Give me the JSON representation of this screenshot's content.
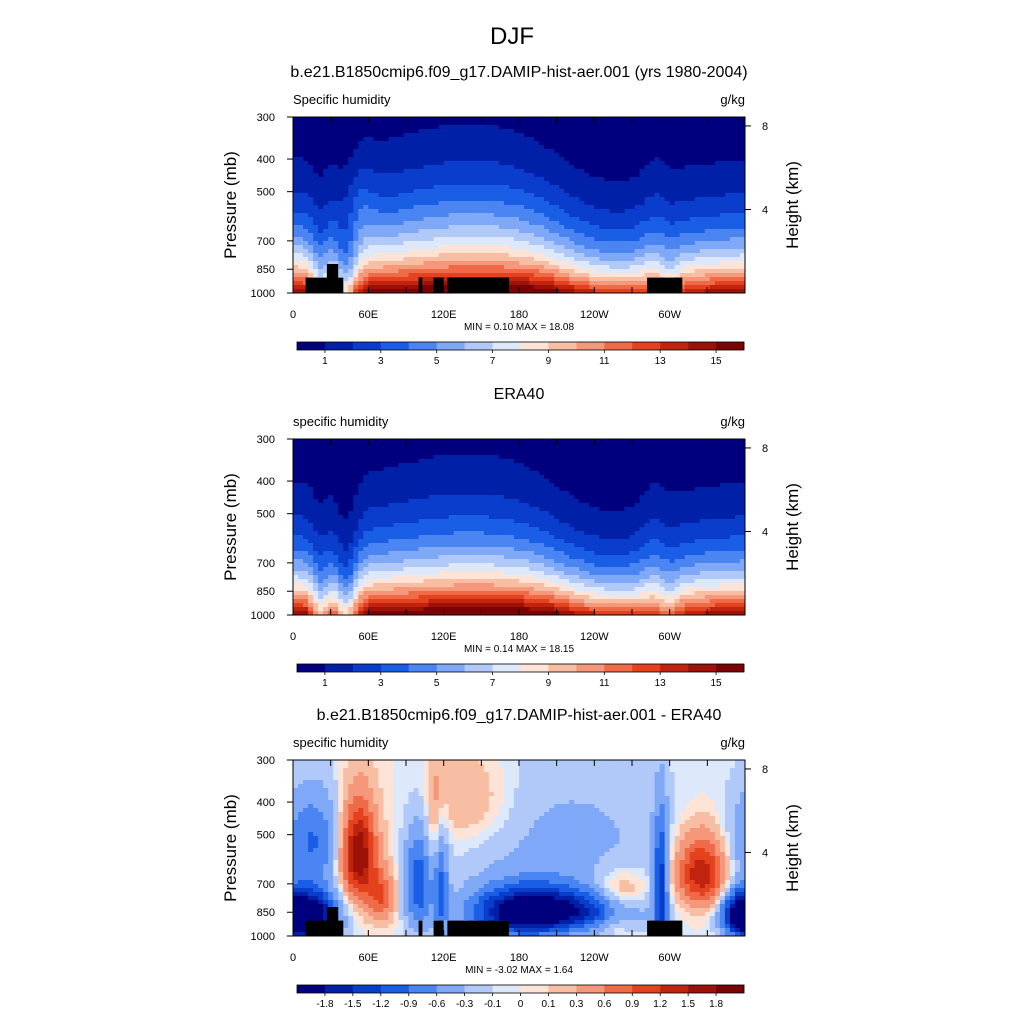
{
  "figure": {
    "title": "DJF",
    "colors": {
      "full_field": [
        "#00007f",
        "#0020a8",
        "#0a3dcc",
        "#1a5ee6",
        "#4a85f2",
        "#7fa8f7",
        "#b0c9f8",
        "#dde8fb",
        "#fde4d6",
        "#f7bea3",
        "#f4977a",
        "#ef6a47",
        "#e4421f",
        "#c0240f",
        "#9c1208",
        "#7a0303"
      ],
      "difference": [
        "#00007f",
        "#0020a8",
        "#0a3dcc",
        "#1a5ee6",
        "#4a85f2",
        "#7fa8f7",
        "#b0c9f8",
        "#dde8fb",
        "#fde4d6",
        "#f7bea3",
        "#f4977a",
        "#ef6a47",
        "#e4421f",
        "#c0240f",
        "#9c1208",
        "#7a0303"
      ],
      "land_mask": "#000000"
    }
  },
  "chart_data": [
    {
      "type": "heatmap",
      "title": "b.e21.B1850cmip6.f09_g17.DAMIP-hist-aer.001 (yrs 1980-2004)",
      "left_label": "Specific humidity",
      "right_label": "g/kg",
      "ylabel": "Pressure (mb)",
      "y2label": "Height (km)",
      "xticks": [
        "0",
        "60E",
        "120E",
        "180",
        "120W",
        "60W"
      ],
      "yticks": [
        "300",
        "400",
        "500",
        "700",
        "850",
        "1000"
      ],
      "y2ticks": [
        "8",
        "4"
      ],
      "x_range_deg": [
        0,
        360
      ],
      "pressure_range_mb": [
        300,
        1000
      ],
      "stats": "MIN =   0.10  MAX =  18.08",
      "colorbar_labels": [
        "1",
        "3",
        "5",
        "7",
        "9",
        "11",
        "13",
        "15"
      ],
      "field": "model"
    },
    {
      "type": "heatmap",
      "title": "ERA40",
      "left_label": "specific humidity",
      "right_label": "g/kg",
      "ylabel": "Pressure (mb)",
      "y2label": "Height (km)",
      "xticks": [
        "0",
        "60E",
        "120E",
        "180",
        "120W",
        "60W"
      ],
      "yticks": [
        "300",
        "400",
        "500",
        "700",
        "850",
        "1000"
      ],
      "y2ticks": [
        "8",
        "4"
      ],
      "x_range_deg": [
        0,
        360
      ],
      "pressure_range_mb": [
        300,
        1000
      ],
      "stats": "MIN =   0.14  MAX =  18.15",
      "colorbar_labels": [
        "1",
        "3",
        "5",
        "7",
        "9",
        "11",
        "13",
        "15"
      ],
      "field": "obs"
    },
    {
      "type": "heatmap",
      "title": "b.e21.B1850cmip6.f09_g17.DAMIP-hist-aer.001 - ERA40",
      "left_label": "specific humidity",
      "right_label": "g/kg",
      "ylabel": "Pressure (mb)",
      "y2label": "Height (km)",
      "xticks": [
        "0",
        "60E",
        "120E",
        "180",
        "120W",
        "60W"
      ],
      "yticks": [
        "300",
        "400",
        "500",
        "700",
        "850",
        "1000"
      ],
      "y2ticks": [
        "8",
        "4"
      ],
      "x_range_deg": [
        0,
        360
      ],
      "pressure_range_mb": [
        300,
        1000
      ],
      "stats": "MIN =  -3.02  MAX =   1.64",
      "colorbar_labels": [
        "-1.8",
        "-1.5",
        "-1.2",
        "-0.9",
        "-0.6",
        "-0.3",
        "-0.1",
        "0",
        "0.1",
        "0.3",
        "0.6",
        "0.9",
        "1.2",
        "1.5",
        "1.8"
      ],
      "field": "diff"
    }
  ]
}
